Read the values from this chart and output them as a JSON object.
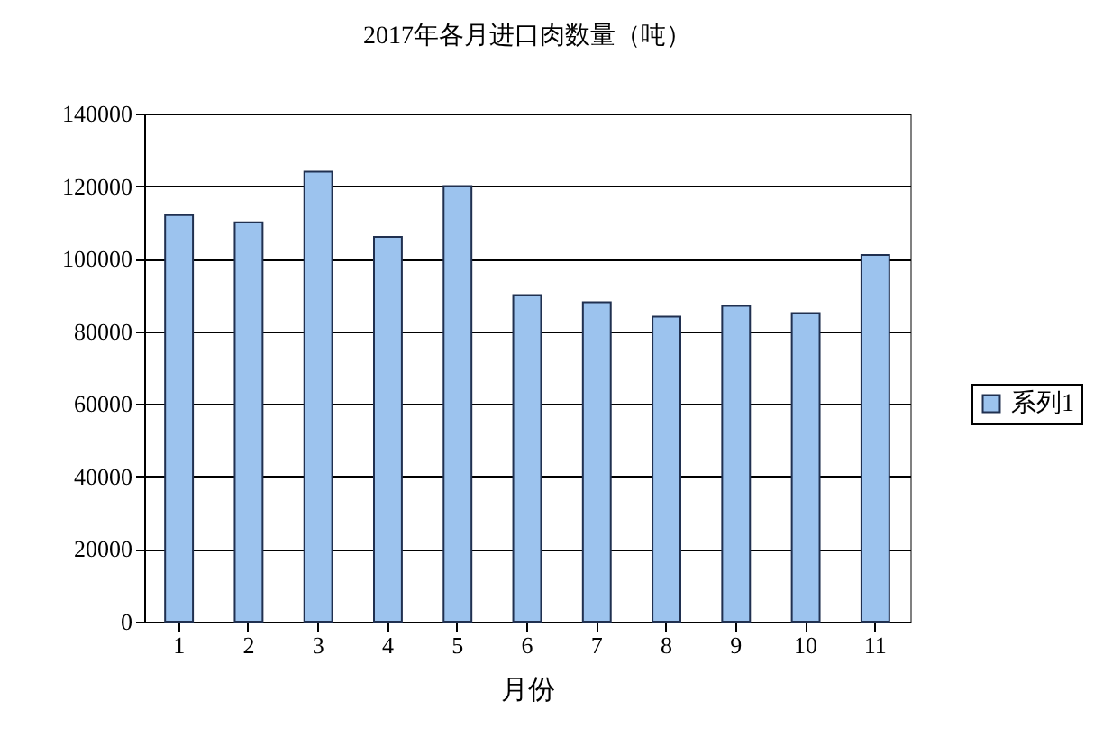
{
  "chart_data": {
    "type": "bar",
    "title": "2017年各月进口肉数量（吨）",
    "xlabel": "月份",
    "categories": [
      "1",
      "2",
      "3",
      "4",
      "5",
      "6",
      "7",
      "8",
      "9",
      "10",
      "11"
    ],
    "series": [
      {
        "name": "系列1",
        "color": "#9cc3ee",
        "values": [
          112000,
          110000,
          124000,
          106000,
          120000,
          90000,
          88000,
          84000,
          87000,
          85000,
          101000
        ]
      }
    ],
    "ylim": [
      0,
      140000
    ],
    "yticks": [
      0,
      20000,
      40000,
      60000,
      80000,
      100000,
      120000,
      140000
    ],
    "grid": "y",
    "legend": "right"
  }
}
